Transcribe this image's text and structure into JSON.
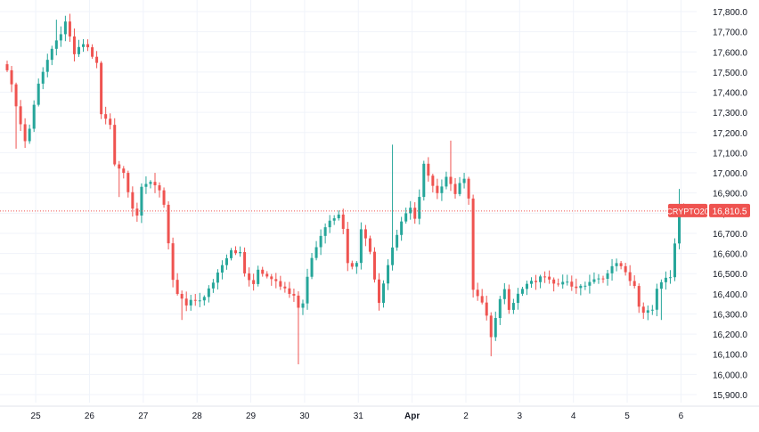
{
  "chart_data": {
    "type": "candlestick",
    "symbol_label": "CRYPTO20",
    "last_price_label": "16,810.5",
    "last_price": 16810.5,
    "y_axis": {
      "min": 15860,
      "max": 17840,
      "tick_values": [
        15900,
        16000,
        16100,
        16200,
        16300,
        16400,
        16500,
        16600,
        16700,
        16800,
        16900,
        17000,
        17100,
        17200,
        17300,
        17400,
        17500,
        17600,
        17700,
        17800
      ],
      "tick_labels": [
        "15,900.0",
        "16,000.0",
        "16,100.0",
        "16,200.0",
        "16,300.0",
        "16,400.0",
        "16,500.0",
        "16,600.0",
        "16,700.0",
        "16,800.0",
        "16,900.0",
        "17,000.0",
        "17,100.0",
        "17,200.0",
        "17,300.0",
        "17,400.0",
        "17,500.0",
        "17,600.0",
        "17,700.0",
        "17,800.0"
      ]
    },
    "x_axis": {
      "tick_labels": [
        "25",
        "26",
        "27",
        "28",
        "29",
        "30",
        "31",
        "Apr",
        "2",
        "3",
        "4",
        "5",
        "6"
      ],
      "tick_index": [
        3,
        15,
        27,
        39,
        51,
        63,
        75,
        87,
        99,
        111,
        123,
        135,
        147
      ],
      "bold_label": "Apr"
    },
    "grid": true,
    "colors": {
      "up": "#26a69a",
      "down": "#ef5350",
      "grid": "#f0f3fa",
      "text": "#131722",
      "price_line": "#ef5350"
    },
    "waypoints": [
      [
        0,
        17520
      ],
      [
        2,
        17340
      ],
      [
        3,
        17240
      ],
      [
        4,
        17160
      ],
      [
        5,
        17220
      ],
      [
        7,
        17450
      ],
      [
        9,
        17560
      ],
      [
        11,
        17650
      ],
      [
        13,
        17740
      ],
      [
        14,
        17670
      ],
      [
        15,
        17590
      ],
      [
        17,
        17640
      ],
      [
        18,
        17620
      ],
      [
        20,
        17540
      ],
      [
        21,
        17290
      ],
      [
        23,
        17240
      ],
      [
        24,
        17050
      ],
      [
        26,
        17000
      ],
      [
        28,
        16830
      ],
      [
        29,
        16790
      ],
      [
        30,
        16920
      ],
      [
        32,
        16960
      ],
      [
        34,
        16920
      ],
      [
        35,
        16840
      ],
      [
        36,
        16640
      ],
      [
        37,
        16460
      ],
      [
        38,
        16400
      ],
      [
        40,
        16340
      ],
      [
        41,
        16360
      ],
      [
        44,
        16380
      ],
      [
        46,
        16460
      ],
      [
        48,
        16550
      ],
      [
        50,
        16620
      ],
      [
        52,
        16600
      ],
      [
        53,
        16500
      ],
      [
        55,
        16440
      ],
      [
        56,
        16520
      ],
      [
        58,
        16490
      ],
      [
        60,
        16470
      ],
      [
        62,
        16420
      ],
      [
        64,
        16400
      ],
      [
        65,
        16340
      ],
      [
        66,
        16350
      ],
      [
        67,
        16490
      ],
      [
        68,
        16580
      ],
      [
        70,
        16690
      ],
      [
        72,
        16770
      ],
      [
        74,
        16800
      ],
      [
        75,
        16720
      ],
      [
        76,
        16560
      ],
      [
        77,
        16530
      ],
      [
        78,
        16560
      ],
      [
        79,
        16730
      ],
      [
        81,
        16610
      ],
      [
        82,
        16480
      ],
      [
        83,
        16360
      ],
      [
        84,
        16460
      ],
      [
        86,
        16630
      ],
      [
        88,
        16760
      ],
      [
        90,
        16820
      ],
      [
        91,
        16780
      ],
      [
        92,
        16880
      ],
      [
        93,
        17040
      ],
      [
        94,
        16980
      ],
      [
        95,
        16930
      ],
      [
        96,
        16890
      ],
      [
        98,
        16990
      ],
      [
        100,
        16900
      ],
      [
        102,
        16980
      ],
      [
        103,
        16880
      ],
      [
        104,
        16420
      ],
      [
        105,
        16380
      ],
      [
        106,
        16360
      ],
      [
        107,
        16290
      ],
      [
        108,
        16180
      ],
      [
        109,
        16270
      ],
      [
        110,
        16380
      ],
      [
        111,
        16420
      ],
      [
        112,
        16330
      ],
      [
        114,
        16400
      ],
      [
        116,
        16450
      ],
      [
        118,
        16460
      ],
      [
        120,
        16490
      ],
      [
        122,
        16440
      ],
      [
        124,
        16470
      ],
      [
        126,
        16440
      ],
      [
        128,
        16430
      ],
      [
        130,
        16460
      ],
      [
        132,
        16470
      ],
      [
        134,
        16500
      ],
      [
        136,
        16560
      ],
      [
        137,
        16530
      ],
      [
        138,
        16500
      ],
      [
        140,
        16440
      ],
      [
        141,
        16330
      ],
      [
        142,
        16300
      ],
      [
        143,
        16310
      ],
      [
        144,
        16330
      ],
      [
        145,
        16420
      ],
      [
        146,
        16450
      ],
      [
        147,
        16470
      ],
      [
        148,
        16480
      ],
      [
        149,
        16650
      ],
      [
        150,
        16830
      ],
      [
        151,
        16810
      ]
    ],
    "high_spikes": [
      [
        11,
        17760
      ],
      [
        16,
        17660
      ],
      [
        33,
        17000
      ],
      [
        86,
        17140
      ],
      [
        99,
        17160
      ],
      [
        150,
        16920
      ]
    ],
    "low_spikes": [
      [
        2,
        17120
      ],
      [
        25,
        16880
      ],
      [
        39,
        16270
      ],
      [
        65,
        16050
      ],
      [
        108,
        16090
      ],
      [
        146,
        16270
      ]
    ]
  }
}
